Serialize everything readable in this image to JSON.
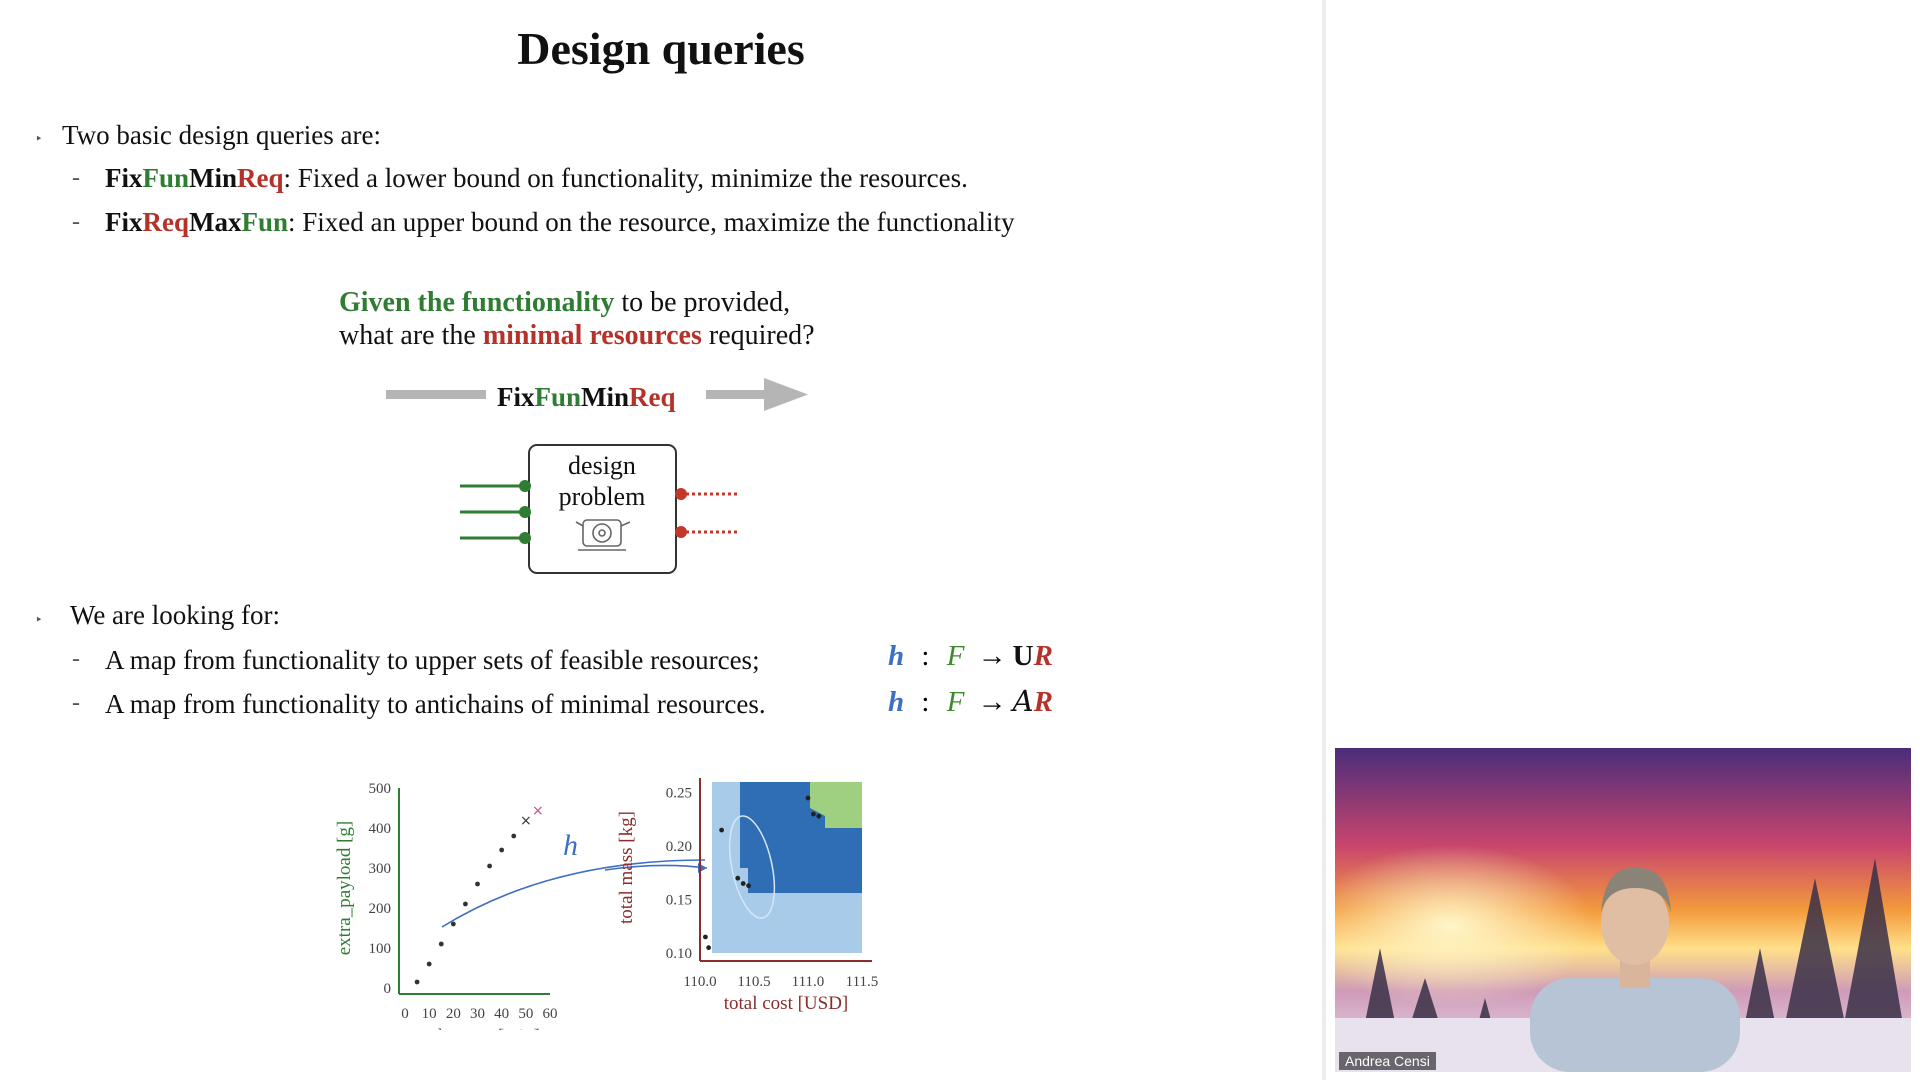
{
  "slide": {
    "title": "Design queries",
    "intro": "Two basic design queries are:",
    "queries": [
      {
        "name": [
          "Fix",
          "Fun",
          "Min",
          "Req"
        ],
        "text": ": Fixed a lower bound on functionality, minimize the resources."
      },
      {
        "name": [
          "Fix",
          "Req",
          "Max",
          "Fun"
        ],
        "text": ": Fixed an upper bound on the resource, maximize the functionality"
      }
    ],
    "question": {
      "line1_green": "Given the functionality",
      "line1_rest": " to be provided,",
      "line2_pre": "what are the ",
      "line2_red": "minimal resources",
      "line2_rest": " required?"
    },
    "arrow_label": [
      "Fix",
      "Fun",
      "Min",
      "Req"
    ],
    "box_label": [
      "design",
      "problem"
    ],
    "looking_for": "We are looking for:",
    "maps": [
      {
        "text": "A map from functionality to upper sets of feasible resources;",
        "h": "h",
        "colon": ":",
        "F": "F",
        "arrow": "→",
        "op": "U",
        "R": "R"
      },
      {
        "text": "A map from functionality to antichains of minimal resources.",
        "h": "h",
        "colon": ":",
        "F": "F",
        "arrow": "→",
        "op": "A",
        "R": "R"
      }
    ],
    "h_label": "h"
  },
  "chart_data": [
    {
      "type": "scatter",
      "xlabel": "endurance [min]",
      "ylabel": "extra_payload [g]",
      "xlim": [
        0,
        60
      ],
      "ylim": [
        0,
        500
      ],
      "xticks": [
        "0",
        "10",
        "20",
        "30",
        "40",
        "50",
        "60"
      ],
      "yticks": [
        "0",
        "100",
        "200",
        "300",
        "400",
        "500"
      ],
      "x": [
        5,
        10,
        15,
        20,
        25,
        30,
        35,
        40,
        45,
        50,
        55
      ],
      "y": [
        15,
        60,
        110,
        160,
        210,
        260,
        305,
        345,
        380,
        420,
        445
      ],
      "color": "#2e7d32"
    },
    {
      "type": "heatmap",
      "xlabel": "total cost [USD]",
      "ylabel": "total mass [kg]",
      "xlim": [
        110.0,
        111.5
      ],
      "ylim": [
        0.1,
        0.26
      ],
      "xticks": [
        "110.0",
        "110.5",
        "111.0",
        "111.5"
      ],
      "yticks": [
        "0.10",
        "0.15",
        "0.20",
        "0.25"
      ],
      "points_x": [
        110.05,
        110.08,
        110.2,
        110.35,
        110.4,
        110.45,
        111.0,
        111.05,
        111.1
      ],
      "points_y": [
        0.115,
        0.105,
        0.215,
        0.17,
        0.165,
        0.163,
        0.245,
        0.23,
        0.228
      ],
      "colors": {
        "light": "#a7cbe8",
        "dark": "#2f6db5",
        "green": "#9fd07f",
        "axis": "#8b2d2d"
      }
    }
  ],
  "webcam": {
    "name": "Andrea Censi"
  }
}
